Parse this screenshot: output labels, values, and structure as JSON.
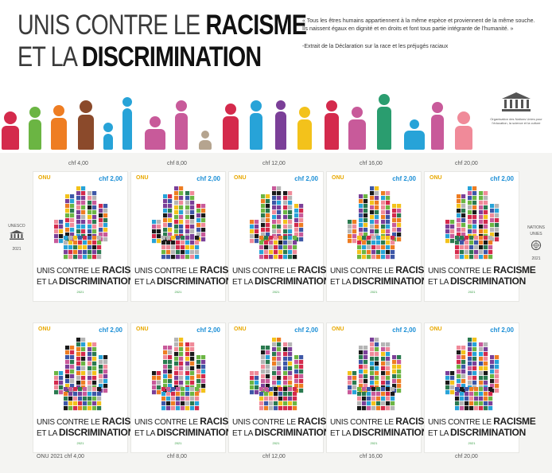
{
  "title": {
    "line1_light": "UNIS CONTRE LE",
    "line1_bold": "RACISME",
    "line2_light": "ET LA",
    "line2_bold": "DISCRIMINATION"
  },
  "quote": {
    "text": "« Tous les êtres humains appartiennent à la même espèce et proviennent de la même souche. Ils naissent égaux en dignité et en droits et font tous partie intégrante de l’humanité. »",
    "source": "-Extrait de la Déclaration sur la race et les préjugés raciaux"
  },
  "unesco_caption": "Organisation des Nations Unies pour l’éducation, la science et la culture",
  "left_margin": {
    "label": "UNESCO",
    "year": "2021"
  },
  "right_margin": {
    "label1": "NATIONS",
    "label2": "UNIES",
    "year": "2021"
  },
  "stamp": {
    "country": "ONU",
    "value": "chf 2,00",
    "text_line1_light": "UNIS CONTRE LE",
    "text_line1_bold": "RACISME",
    "text_line2_light": "ET LA",
    "text_line2_bold": "DISCRIMINATION",
    "year": "2021"
  },
  "top_prices": [
    "chf 4,00",
    "chf 8,00",
    "chf 12,00",
    "chf 16,00",
    "chf 20,00"
  ],
  "bottom_prices": [
    "ONU 2021    chf 4,00",
    "chf 8,00",
    "chf 12,00",
    "chf 16,00",
    "chf 20,00"
  ],
  "colors": {
    "stamp_value": "#1c8fd6",
    "onu_label": "#e8a800",
    "year": "#2f9a3c"
  }
}
